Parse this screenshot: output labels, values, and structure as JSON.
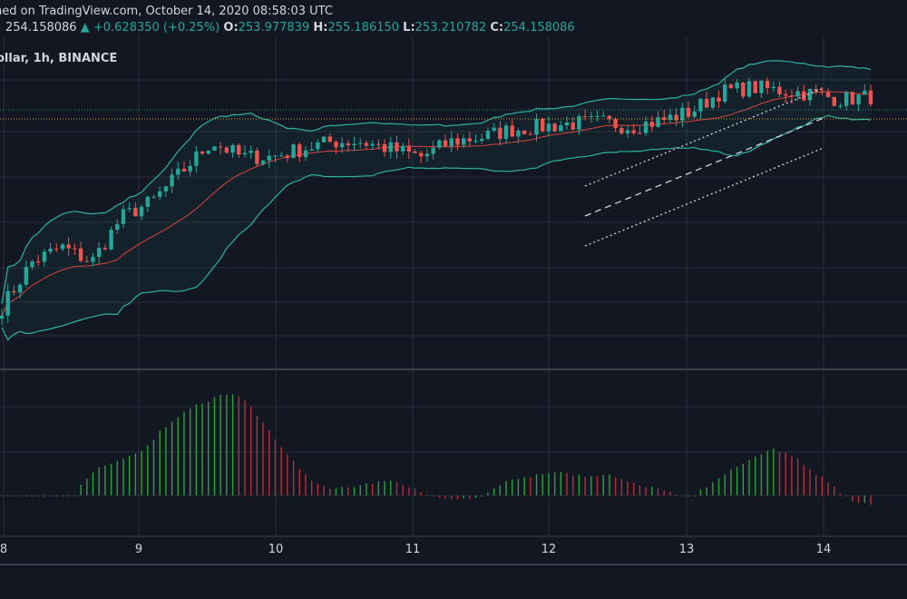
{
  "header": {
    "published": "hed on TradingView.com, October 14, 2020 08:58:03 UTC",
    "price": "254.158086",
    "change_arrow": "▲",
    "change": "+0.628350 (+0.25%)",
    "o_label": "O:",
    "o_value": "253.977839",
    "h_label": "H:",
    "h_value": "255.186150",
    "l_label": "L:",
    "l_value": "253.210782",
    "c_label": "C:",
    "c_value": "254.158086",
    "symbol": "ollar, 1h, BINANCE"
  },
  "colors": {
    "background": "#131722",
    "grid": "#2a2e39",
    "up": "#26a69a",
    "down": "#ef5350",
    "bollinger": "#2bb3a2",
    "basis": "#d4463f",
    "hist_up": "#2aa33a",
    "hist_down": "#b5303a",
    "annotation": "#d1d4dc",
    "price_line": "#c8a43b"
  },
  "chart_data": {
    "type": "candlestick",
    "x_ticks": [
      "8",
      "9",
      "10",
      "11",
      "12",
      "13",
      "14"
    ],
    "close_path": [
      240,
      243,
      244,
      243,
      246,
      247,
      249,
      251,
      250,
      250,
      250.5,
      251,
      251,
      250.5,
      250,
      251,
      251.3,
      251.8,
      252,
      252.2,
      252.3,
      252,
      252.4,
      253,
      254.3,
      254.6,
      254.4,
      254.2,
      253.8,
      254
    ],
    "candle_count": 144,
    "indicators": [
      "Bollinger Bands",
      "MACD histogram"
    ],
    "annotations": [
      "ascending parallel channel (dotted)",
      "channel median (dashed)"
    ]
  }
}
